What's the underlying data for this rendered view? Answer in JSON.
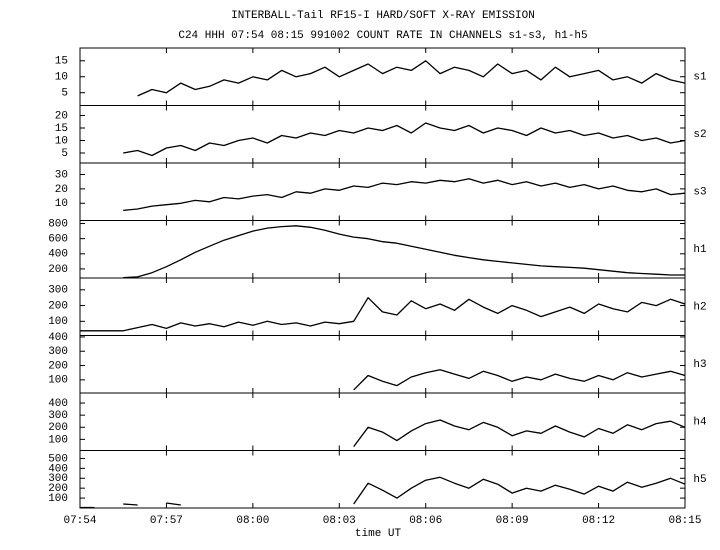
{
  "chart_data": [
    {
      "type": "line",
      "title": "INTERBALL-Tail RF15-I HARD/SOFT X-RAY EMISSION",
      "subtitle": "C24 HHH 07:54 08:15 991002  COUNT RATE IN CHANNELS s1-s3, h1-h5",
      "name": "s1",
      "color": "#000000",
      "ylim": [
        1,
        19
      ],
      "yticks": [
        5,
        10,
        15
      ],
      "x": [
        474,
        474.5,
        475,
        475.5,
        476,
        476.5,
        477,
        477.5,
        478,
        478.5,
        479,
        479.5,
        480,
        480.5,
        481,
        481.5,
        482,
        482.5,
        483,
        483.5,
        484,
        484.5,
        485,
        485.5,
        486,
        486.5,
        487,
        487.5,
        488,
        488.5,
        489,
        489.5,
        490,
        490.5,
        491,
        491.5,
        492,
        492.5,
        493,
        493.5,
        494,
        494.5,
        495
      ],
      "values": [
        null,
        null,
        null,
        null,
        4,
        6,
        5,
        8,
        6,
        7,
        9,
        8,
        10,
        9,
        12,
        10,
        11,
        13,
        10,
        12,
        14,
        11,
        13,
        12,
        15,
        11,
        13,
        12,
        10,
        14,
        11,
        12,
        9,
        13,
        10,
        11,
        12,
        9,
        10,
        8,
        11,
        9,
        8
      ]
    },
    {
      "type": "line",
      "name": "s2",
      "color": "#000000",
      "ylim": [
        1,
        24
      ],
      "yticks": [
        5,
        10,
        15,
        20
      ],
      "x": [
        474,
        474.5,
        475,
        475.5,
        476,
        476.5,
        477,
        477.5,
        478,
        478.5,
        479,
        479.5,
        480,
        480.5,
        481,
        481.5,
        482,
        482.5,
        483,
        483.5,
        484,
        484.5,
        485,
        485.5,
        486,
        486.5,
        487,
        487.5,
        488,
        488.5,
        489,
        489.5,
        490,
        490.5,
        491,
        491.5,
        492,
        492.5,
        493,
        493.5,
        494,
        494.5,
        495
      ],
      "values": [
        null,
        null,
        null,
        5,
        6,
        4,
        7,
        8,
        6,
        9,
        8,
        10,
        11,
        9,
        12,
        11,
        13,
        12,
        14,
        13,
        15,
        14,
        16,
        13,
        17,
        15,
        14,
        16,
        13,
        15,
        14,
        12,
        15,
        13,
        14,
        12,
        13,
        11,
        12,
        10,
        11,
        9,
        10
      ]
    },
    {
      "type": "line",
      "name": "s3",
      "color": "#000000",
      "ylim": [
        -2,
        38
      ],
      "yticks": [
        10,
        20,
        30
      ],
      "x": [
        474,
        474.5,
        475,
        475.5,
        476,
        476.5,
        477,
        477.5,
        478,
        478.5,
        479,
        479.5,
        480,
        480.5,
        481,
        481.5,
        482,
        482.5,
        483,
        483.5,
        484,
        484.5,
        485,
        485.5,
        486,
        486.5,
        487,
        487.5,
        488,
        488.5,
        489,
        489.5,
        490,
        490.5,
        491,
        491.5,
        492,
        492.5,
        493,
        493.5,
        494,
        494.5,
        495
      ],
      "values": [
        null,
        null,
        null,
        5,
        6,
        8,
        9,
        10,
        12,
        11,
        14,
        13,
        15,
        16,
        14,
        18,
        17,
        20,
        19,
        22,
        21,
        24,
        23,
        25,
        24,
        26,
        25,
        27,
        24,
        26,
        23,
        25,
        22,
        24,
        21,
        23,
        20,
        22,
        19,
        18,
        20,
        16,
        17
      ]
    },
    {
      "type": "line",
      "name": "h1",
      "color": "#000000",
      "ylim": [
        80,
        840
      ],
      "yticks": [
        200,
        400,
        600,
        800
      ],
      "x": [
        474,
        474.5,
        475,
        475.5,
        476,
        476.5,
        477,
        477.5,
        478,
        478.5,
        479,
        479.5,
        480,
        480.5,
        481,
        481.5,
        482,
        482.5,
        483,
        483.5,
        484,
        484.5,
        485,
        485.5,
        486,
        486.5,
        487,
        487.5,
        488,
        488.5,
        489,
        489.5,
        490,
        490.5,
        491,
        491.5,
        492,
        492.5,
        493,
        493.5,
        494,
        494.5,
        495
      ],
      "values": [
        null,
        null,
        null,
        85,
        95,
        150,
        230,
        320,
        420,
        500,
        580,
        640,
        700,
        740,
        760,
        770,
        750,
        710,
        660,
        620,
        600,
        560,
        540,
        500,
        460,
        420,
        380,
        350,
        320,
        300,
        280,
        260,
        240,
        230,
        220,
        210,
        190,
        170,
        150,
        140,
        130,
        120,
        120
      ]
    },
    {
      "type": "line",
      "name": "h2",
      "color": "#000000",
      "ylim": [
        10,
        375
      ],
      "yticks": [
        100,
        200,
        300
      ],
      "x": [
        474,
        474.5,
        475,
        475.5,
        476,
        476.5,
        477,
        477.5,
        478,
        478.5,
        479,
        479.5,
        480,
        480.5,
        481,
        481.5,
        482,
        482.5,
        483,
        483.5,
        484,
        484.5,
        485,
        485.5,
        486,
        486.5,
        487,
        487.5,
        488,
        488.5,
        489,
        489.5,
        490,
        490.5,
        491,
        491.5,
        492,
        492.5,
        493,
        493.5,
        494,
        494.5,
        495
      ],
      "values": [
        40,
        40,
        40,
        40,
        60,
        80,
        55,
        90,
        70,
        85,
        65,
        95,
        75,
        100,
        80,
        90,
        70,
        95,
        85,
        100,
        250,
        160,
        140,
        230,
        180,
        210,
        170,
        240,
        190,
        150,
        200,
        170,
        130,
        160,
        190,
        150,
        210,
        180,
        160,
        220,
        200,
        240,
        210
      ]
    },
    {
      "type": "line",
      "name": "h3",
      "color": "#000000",
      "ylim": [
        8,
        410
      ],
      "yticks": [
        100,
        200,
        300,
        400
      ],
      "x": [
        474,
        474.5,
        475,
        475.5,
        476,
        476.5,
        477,
        477.5,
        478,
        478.5,
        479,
        479.5,
        480,
        480.5,
        481,
        481.5,
        482,
        482.5,
        483,
        483.5,
        484,
        484.5,
        485,
        485.5,
        486,
        486.5,
        487,
        487.5,
        488,
        488.5,
        489,
        489.5,
        490,
        490.5,
        491,
        491.5,
        492,
        492.5,
        493,
        493.5,
        494,
        494.5,
        495
      ],
      "values": [
        null,
        null,
        null,
        null,
        null,
        null,
        null,
        null,
        null,
        null,
        null,
        null,
        null,
        null,
        null,
        null,
        null,
        null,
        null,
        30,
        130,
        90,
        60,
        120,
        150,
        170,
        140,
        110,
        160,
        130,
        90,
        120,
        100,
        140,
        110,
        90,
        130,
        100,
        150,
        120,
        140,
        160,
        130
      ]
    },
    {
      "type": "line",
      "name": "h4",
      "color": "#000000",
      "ylim": [
        8,
        483
      ],
      "yticks": [
        100,
        200,
        300,
        400
      ],
      "x": [
        474,
        474.5,
        475,
        475.5,
        476,
        476.5,
        477,
        477.5,
        478,
        478.5,
        479,
        479.5,
        480,
        480.5,
        481,
        481.5,
        482,
        482.5,
        483,
        483.5,
        484,
        484.5,
        485,
        485.5,
        486,
        486.5,
        487,
        487.5,
        488,
        488.5,
        489,
        489.5,
        490,
        490.5,
        491,
        491.5,
        492,
        492.5,
        493,
        493.5,
        494,
        494.5,
        495
      ],
      "values": [
        null,
        null,
        null,
        null,
        null,
        null,
        null,
        null,
        null,
        null,
        null,
        null,
        null,
        null,
        null,
        null,
        null,
        null,
        null,
        40,
        200,
        160,
        90,
        170,
        230,
        260,
        210,
        180,
        240,
        200,
        130,
        170,
        150,
        210,
        160,
        120,
        190,
        150,
        220,
        180,
        230,
        250,
        200
      ]
    },
    {
      "type": "line",
      "name": "h5",
      "color": "#000000",
      "ylim": [
        0,
        580
      ],
      "yticks": [
        100,
        200,
        300,
        400,
        500
      ],
      "xlabel": "time UT",
      "xlim": [
        474,
        495
      ],
      "xticks": [
        {
          "value": 474,
          "label": "07:54"
        },
        {
          "value": 477,
          "label": "07:57"
        },
        {
          "value": 480,
          "label": "08:00"
        },
        {
          "value": 483,
          "label": "08:03"
        },
        {
          "value": 486,
          "label": "08:06"
        },
        {
          "value": 489,
          "label": "08:09"
        },
        {
          "value": 492,
          "label": "08:12"
        },
        {
          "value": 495,
          "label": "08:15"
        }
      ],
      "x": [
        474,
        474.5,
        475,
        475.5,
        476,
        476.5,
        477,
        477.5,
        478,
        478.5,
        479,
        479.5,
        480,
        480.5,
        481,
        481.5,
        482,
        482.5,
        483,
        483.5,
        484,
        484.5,
        485,
        485.5,
        486,
        486.5,
        487,
        487.5,
        488,
        488.5,
        489,
        489.5,
        490,
        490.5,
        491,
        491.5,
        492,
        492.5,
        493,
        493.5,
        494,
        494.5,
        495
      ],
      "values": [
        5,
        5,
        null,
        40,
        30,
        null,
        50,
        30,
        null,
        null,
        null,
        null,
        null,
        null,
        null,
        null,
        null,
        null,
        null,
        40,
        250,
        180,
        100,
        200,
        280,
        310,
        250,
        200,
        290,
        240,
        150,
        200,
        170,
        230,
        190,
        140,
        220,
        170,
        260,
        210,
        250,
        300,
        240
      ]
    }
  ]
}
